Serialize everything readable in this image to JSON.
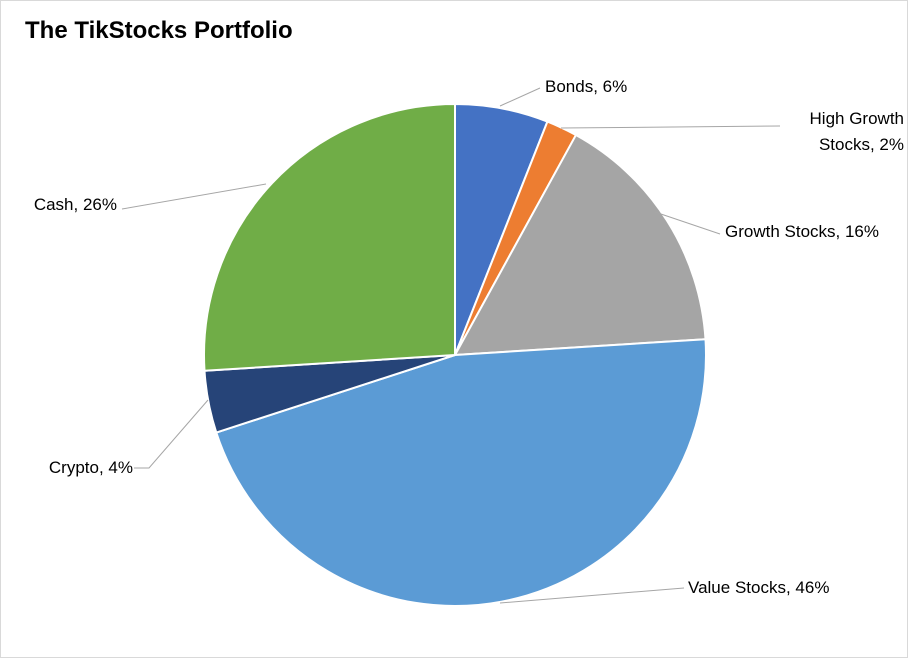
{
  "chart_data": {
    "type": "pie",
    "title": "The TikStocks Portfolio",
    "slices": [
      {
        "name": "Bonds",
        "value": 6,
        "label": "Bonds, 6%",
        "color": "#4472C4"
      },
      {
        "name": "High Growth Stocks",
        "value": 2,
        "label_lines": [
          "High Growth",
          "Stocks, 2%"
        ],
        "color": "#ED7D31"
      },
      {
        "name": "Growth Stocks",
        "value": 16,
        "label": "Growth Stocks, 16%",
        "color": "#A5A5A5"
      },
      {
        "name": "Value Stocks",
        "value": 46,
        "label": "Value Stocks, 46%",
        "color": "#5B9BD5"
      },
      {
        "name": "Crypto",
        "value": 4,
        "label": "Crypto, 4%",
        "color": "#264478"
      },
      {
        "name": "Cash",
        "value": 26,
        "label": "Cash, 26%",
        "color": "#70AD47"
      }
    ],
    "legend": "none",
    "data_labels": "outside-with-leader-lines"
  }
}
